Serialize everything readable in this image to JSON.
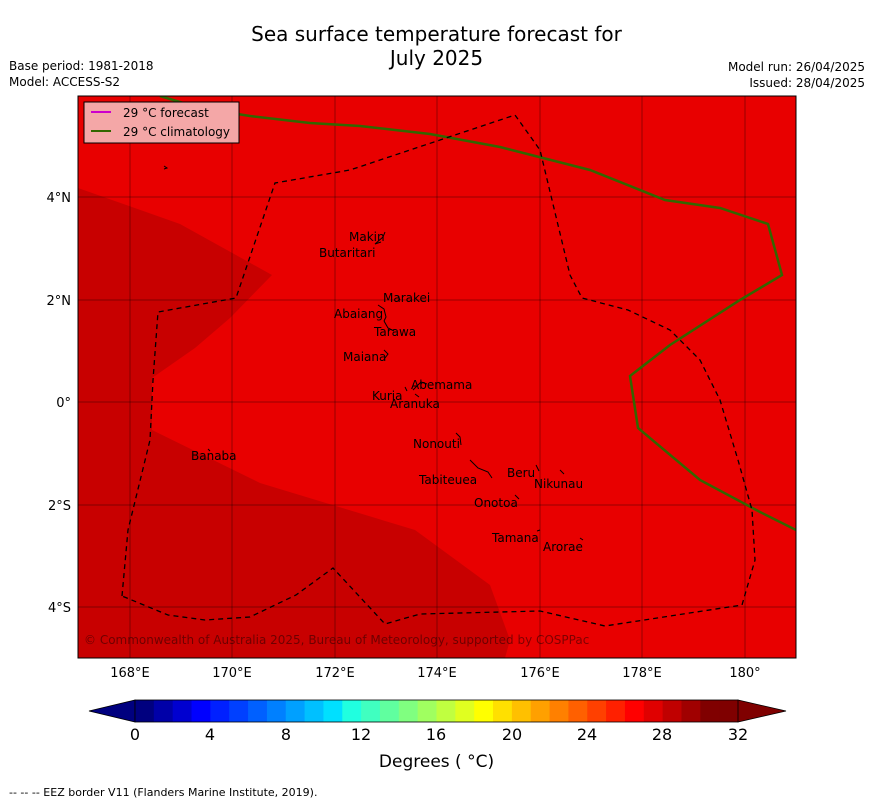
{
  "title": {
    "line1": "Sea surface temperature forecast for",
    "line2": "July 2025"
  },
  "meta_left": {
    "base_period": "Base period: 1981-2018",
    "model": "Model: ACCESS-S2"
  },
  "meta_right": {
    "model_run": "Model run: 26/04/2025",
    "issued": "Issued: 28/04/2025"
  },
  "legend": {
    "forecast": "29 °C  forecast",
    "climatology": "29 °C  climatology"
  },
  "colors": {
    "forecast_line": "#cc00cc",
    "climatology_line": "#336600",
    "sst_30_32": "#e80000",
    "sst_31_32": "#c80000",
    "eez_border": "#000000"
  },
  "lon_ticks": [
    "168°E",
    "170°E",
    "172°E",
    "174°E",
    "176°E",
    "178°E",
    "180°"
  ],
  "lat_ticks": [
    "4°N",
    "2°N",
    "0°",
    "2°S",
    "4°S"
  ],
  "islands": [
    {
      "name": "Makin"
    },
    {
      "name": "Butaritari"
    },
    {
      "name": "Marakei"
    },
    {
      "name": "Abaiang"
    },
    {
      "name": "Tarawa"
    },
    {
      "name": "Maiana"
    },
    {
      "name": "Abemama"
    },
    {
      "name": "Kuria"
    },
    {
      "name": "Aranuka"
    },
    {
      "name": "Nonouti"
    },
    {
      "name": "Banaba"
    },
    {
      "name": "Beru"
    },
    {
      "name": "Nikunau"
    },
    {
      "name": "Tabiteuea"
    },
    {
      "name": "Onotoa"
    },
    {
      "name": "Tamana"
    },
    {
      "name": "Arorae"
    }
  ],
  "attribution": "© Commonwealth of Australia 2025, Bureau of Meteorology, supported by COSPPac",
  "colorbar": {
    "ticks": [
      "0",
      "4",
      "8",
      "12",
      "16",
      "20",
      "24",
      "28",
      "32"
    ],
    "label": "Degrees ( °C)",
    "colors": [
      "#00007f",
      "#0000a8",
      "#0000d0",
      "#0000ff",
      "#0020ff",
      "#0040ff",
      "#0060ff",
      "#0080ff",
      "#00a0ff",
      "#00c0ff",
      "#00e0ff",
      "#20ffe0",
      "#40ffc0",
      "#60ff9f",
      "#80ff80",
      "#a0ff60",
      "#c0ff40",
      "#e0ff20",
      "#ffff00",
      "#ffe000",
      "#ffc000",
      "#ffa000",
      "#ff8000",
      "#ff6000",
      "#ff4000",
      "#ff2000",
      "#ff0000",
      "#e00000",
      "#c00000",
      "#a00000",
      "#800000",
      "#7f0000"
    ]
  },
  "footnote": "--  --  -- EEZ border V11 (Flanders Marine Institute, 2019)."
}
